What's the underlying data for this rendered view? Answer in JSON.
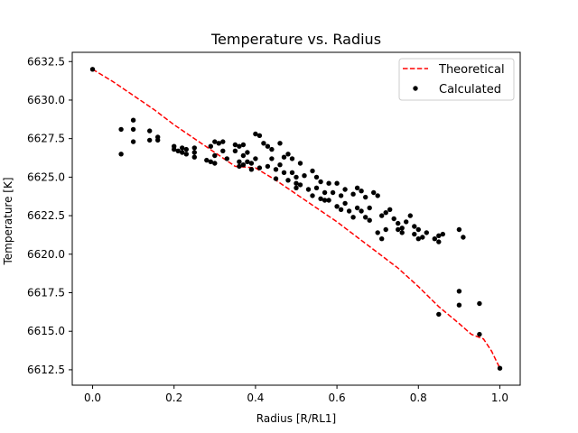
{
  "chart_data": {
    "type": "scatter",
    "title": "Temperature vs. Radius",
    "xlabel": "Radius [R/RL1]",
    "ylabel": "Temperature [K]",
    "xlim": [
      -0.05,
      1.05
    ],
    "ylim": [
      6611.5,
      6633.1
    ],
    "xticks": [
      0.0,
      0.2,
      0.4,
      0.6,
      0.8,
      1.0
    ],
    "xtick_labels": [
      "0.0",
      "0.2",
      "0.4",
      "0.6",
      "0.8",
      "1.0"
    ],
    "yticks": [
      6612.5,
      6615.0,
      6617.5,
      6620.0,
      6622.5,
      6625.0,
      6627.5,
      6630.0,
      6632.5
    ],
    "ytick_labels": [
      "6612.5",
      "6615.0",
      "6617.5",
      "6620.0",
      "6622.5",
      "6625.0",
      "6627.5",
      "6630.0",
      "6632.5"
    ],
    "grid": false,
    "legend_position": "top-right",
    "series": [
      {
        "name": "Theoretical",
        "kind": "line",
        "style": "dashed",
        "color": "#ff0000",
        "x": [
          0.0,
          0.05,
          0.1,
          0.15,
          0.2,
          0.25,
          0.3,
          0.35,
          0.4,
          0.45,
          0.5,
          0.55,
          0.6,
          0.65,
          0.7,
          0.75,
          0.8,
          0.85,
          0.9,
          0.93,
          0.96,
          0.98,
          1.0
        ],
        "y": [
          6632.0,
          6631.2,
          6630.3,
          6629.4,
          6628.4,
          6627.5,
          6626.6,
          6625.7,
          6625.6,
          6624.8,
          6623.9,
          6623.0,
          6622.1,
          6621.1,
          6620.1,
          6619.1,
          6617.9,
          6616.6,
          6615.5,
          6614.8,
          6614.5,
          6613.7,
          6612.6
        ]
      },
      {
        "name": "Calculated",
        "kind": "scatter",
        "color": "#000000",
        "x": [
          0.0,
          0.07,
          0.07,
          0.1,
          0.1,
          0.1,
          0.14,
          0.14,
          0.16,
          0.16,
          0.2,
          0.2,
          0.21,
          0.22,
          0.22,
          0.23,
          0.23,
          0.25,
          0.25,
          0.25,
          0.28,
          0.29,
          0.29,
          0.3,
          0.3,
          0.3,
          0.31,
          0.32,
          0.32,
          0.33,
          0.35,
          0.35,
          0.36,
          0.36,
          0.36,
          0.37,
          0.37,
          0.37,
          0.38,
          0.38,
          0.39,
          0.39,
          0.4,
          0.4,
          0.41,
          0.41,
          0.42,
          0.43,
          0.43,
          0.44,
          0.44,
          0.45,
          0.45,
          0.46,
          0.46,
          0.47,
          0.47,
          0.48,
          0.48,
          0.49,
          0.49,
          0.5,
          0.5,
          0.5,
          0.51,
          0.51,
          0.52,
          0.53,
          0.54,
          0.54,
          0.55,
          0.55,
          0.56,
          0.56,
          0.57,
          0.57,
          0.58,
          0.58,
          0.59,
          0.6,
          0.6,
          0.61,
          0.61,
          0.62,
          0.62,
          0.63,
          0.64,
          0.64,
          0.65,
          0.65,
          0.66,
          0.66,
          0.67,
          0.67,
          0.68,
          0.68,
          0.69,
          0.7,
          0.7,
          0.71,
          0.71,
          0.72,
          0.72,
          0.73,
          0.74,
          0.75,
          0.75,
          0.76,
          0.76,
          0.77,
          0.78,
          0.79,
          0.79,
          0.8,
          0.8,
          0.81,
          0.82,
          0.84,
          0.85,
          0.85,
          0.86,
          0.85,
          0.9,
          0.9,
          0.91,
          0.9,
          0.95,
          0.95,
          1.0
        ],
        "y": [
          6632.0,
          6628.1,
          6626.5,
          6628.7,
          6628.1,
          6627.3,
          6628.0,
          6627.4,
          6627.6,
          6627.4,
          6627.0,
          6626.8,
          6626.7,
          6626.9,
          6626.6,
          6626.8,
          6626.5,
          6626.9,
          6626.6,
          6626.3,
          6626.1,
          6627.0,
          6626.0,
          6627.3,
          6626.4,
          6625.9,
          6627.2,
          6627.3,
          6626.7,
          6626.2,
          6627.1,
          6626.7,
          6627.0,
          6626.0,
          6625.7,
          6627.1,
          6626.4,
          6625.8,
          6626.6,
          6626.0,
          6625.9,
          6625.5,
          6627.8,
          6626.2,
          6627.7,
          6625.6,
          6627.2,
          6627.0,
          6625.7,
          6626.8,
          6626.2,
          6625.5,
          6624.9,
          6627.2,
          6625.8,
          6626.3,
          6625.3,
          6626.5,
          6624.8,
          6626.2,
          6625.3,
          6625.0,
          6624.6,
          6624.3,
          6625.9,
          6624.5,
          6625.1,
          6624.2,
          6625.4,
          6623.8,
          6625.0,
          6624.3,
          6624.7,
          6623.6,
          6624.0,
          6623.5,
          6624.6,
          6623.5,
          6624.0,
          6624.6,
          6623.1,
          6623.8,
          6622.9,
          6624.2,
          6623.3,
          6622.8,
          6623.9,
          6622.4,
          6624.3,
          6623.0,
          6624.1,
          6622.8,
          6623.7,
          6622.4,
          6622.2,
          6623.0,
          6624.0,
          6621.4,
          6623.8,
          6621.0,
          6622.5,
          6622.7,
          6621.6,
          6622.9,
          6622.3,
          6622.0,
          6621.6,
          6621.7,
          6621.4,
          6622.1,
          6622.5,
          6621.8,
          6621.3,
          6621.6,
          6621.0,
          6621.1,
          6621.4,
          6621.0,
          6621.2,
          6620.8,
          6621.3,
          6616.1,
          6621.6,
          6617.6,
          6621.1,
          6616.7,
          6616.8,
          6614.8,
          6612.6
        ]
      }
    ]
  }
}
